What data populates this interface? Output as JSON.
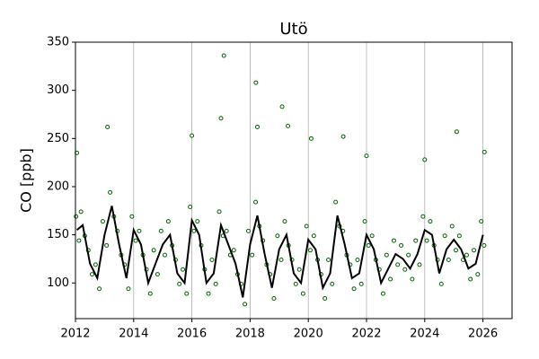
{
  "chart_data": {
    "type": "scatter",
    "title": "Utö",
    "ylabel": "CO [ppb]",
    "xlim": [
      2012,
      2027
    ],
    "xticks": [
      2012,
      2014,
      2016,
      2018,
      2020,
      2022,
      2024,
      2026
    ],
    "ylim": [
      63,
      350
    ],
    "yticks": [
      100,
      150,
      200,
      250,
      300,
      350
    ],
    "grid": "x",
    "series": [
      {
        "style": "markers",
        "color": "#006400",
        "x": [
          2012.02,
          2012.12,
          2012.19,
          2012.32,
          2012.44,
          2012.57,
          2012.69,
          2012.82,
          2012.94,
          2013.07,
          2013.19,
          2013.32,
          2013.44,
          2013.57,
          2013.69,
          2013.82,
          2013.94,
          2014.07,
          2014.19,
          2014.32,
          2014.44,
          2014.57,
          2014.69,
          2014.82,
          2014.94,
          2015.07,
          2015.19,
          2015.32,
          2015.44,
          2015.57,
          2015.69,
          2015.82,
          2015.94,
          2016.07,
          2016.19,
          2016.32,
          2016.44,
          2016.57,
          2016.69,
          2016.82,
          2016.94,
          2017.07,
          2017.19,
          2017.32,
          2017.44,
          2017.57,
          2017.69,
          2017.82,
          2017.94,
          2018.07,
          2018.19,
          2018.32,
          2018.44,
          2018.57,
          2018.69,
          2018.82,
          2018.94,
          2019.07,
          2019.19,
          2019.32,
          2019.44,
          2019.57,
          2019.69,
          2019.82,
          2019.94,
          2020.07,
          2020.19,
          2020.32,
          2020.44,
          2020.57,
          2020.69,
          2020.82,
          2020.94,
          2021.07,
          2021.19,
          2021.32,
          2021.44,
          2021.57,
          2021.69,
          2021.82,
          2021.94,
          2022.07,
          2022.19,
          2022.32,
          2022.44,
          2022.57,
          2022.69,
          2022.82,
          2022.94,
          2023.07,
          2023.19,
          2023.32,
          2023.44,
          2023.57,
          2023.69,
          2023.82,
          2023.94,
          2024.07,
          2024.19,
          2024.32,
          2024.44,
          2024.57,
          2024.69,
          2024.82,
          2024.94,
          2025.07,
          2025.19,
          2025.32,
          2025.44,
          2025.57,
          2025.69,
          2025.82,
          2025.94,
          2026.04,
          2017.1,
          2018.2,
          2017.0,
          2019.1,
          2013.1,
          2016.0,
          2020.1,
          2025.1,
          2026.05,
          2012.05,
          2021.2,
          2024.0,
          2022.0,
          2019.3,
          2018.25
        ],
        "values": [
          169,
          144,
          174,
          149,
          134,
          109,
          119,
          94,
          164,
          139,
          194,
          169,
          154,
          129,
          119,
          94,
          169,
          144,
          154,
          129,
          114,
          89,
          134,
          109,
          154,
          129,
          164,
          139,
          124,
          99,
          114,
          89,
          179,
          154,
          164,
          139,
          114,
          89,
          124,
          99,
          174,
          149,
          154,
          129,
          134,
          109,
          99,
          78,
          154,
          129,
          184,
          159,
          144,
          119,
          109,
          84,
          149,
          124,
          164,
          139,
          124,
          99,
          114,
          89,
          159,
          134,
          149,
          124,
          109,
          84,
          124,
          99,
          184,
          159,
          154,
          129,
          119,
          94,
          124,
          99,
          164,
          139,
          149,
          124,
          114,
          89,
          129,
          104,
          144,
          119,
          139,
          114,
          129,
          104,
          144,
          119,
          169,
          144,
          164,
          139,
          124,
          99,
          149,
          124,
          159,
          134,
          149,
          124,
          129,
          104,
          134,
          109,
          164,
          139,
          336,
          308,
          271,
          283,
          262,
          253,
          250,
          257,
          236,
          235,
          252,
          228,
          232,
          263,
          262
        ]
      },
      {
        "style": "line",
        "color": "#000000",
        "x": [
          2012.05,
          2012.25,
          2012.5,
          2012.75,
          2013.0,
          2013.25,
          2013.5,
          2013.75,
          2014.0,
          2014.25,
          2014.5,
          2014.75,
          2015.0,
          2015.25,
          2015.5,
          2015.75,
          2016.0,
          2016.25,
          2016.5,
          2016.75,
          2017.0,
          2017.25,
          2017.5,
          2017.75,
          2018.0,
          2018.25,
          2018.5,
          2018.75,
          2019.0,
          2019.25,
          2019.5,
          2019.75,
          2020.0,
          2020.25,
          2020.5,
          2020.75,
          2021.0,
          2021.25,
          2021.5,
          2021.75,
          2022.0,
          2022.25,
          2022.5,
          2022.75,
          2023.0,
          2023.25,
          2023.5,
          2023.75,
          2024.0,
          2024.25,
          2024.5,
          2024.75,
          2025.0,
          2025.25,
          2025.5,
          2025.75,
          2026.0
        ],
        "values": [
          155,
          160,
          120,
          105,
          150,
          180,
          140,
          105,
          155,
          140,
          100,
          120,
          140,
          150,
          110,
          100,
          165,
          150,
          100,
          110,
          160,
          140,
          120,
          85,
          140,
          170,
          130,
          95,
          135,
          150,
          110,
          100,
          145,
          135,
          95,
          110,
          170,
          140,
          105,
          110,
          150,
          135,
          100,
          115,
          130,
          125,
          115,
          130,
          155,
          150,
          110,
          135,
          145,
          135,
          115,
          120,
          150
        ]
      }
    ]
  }
}
